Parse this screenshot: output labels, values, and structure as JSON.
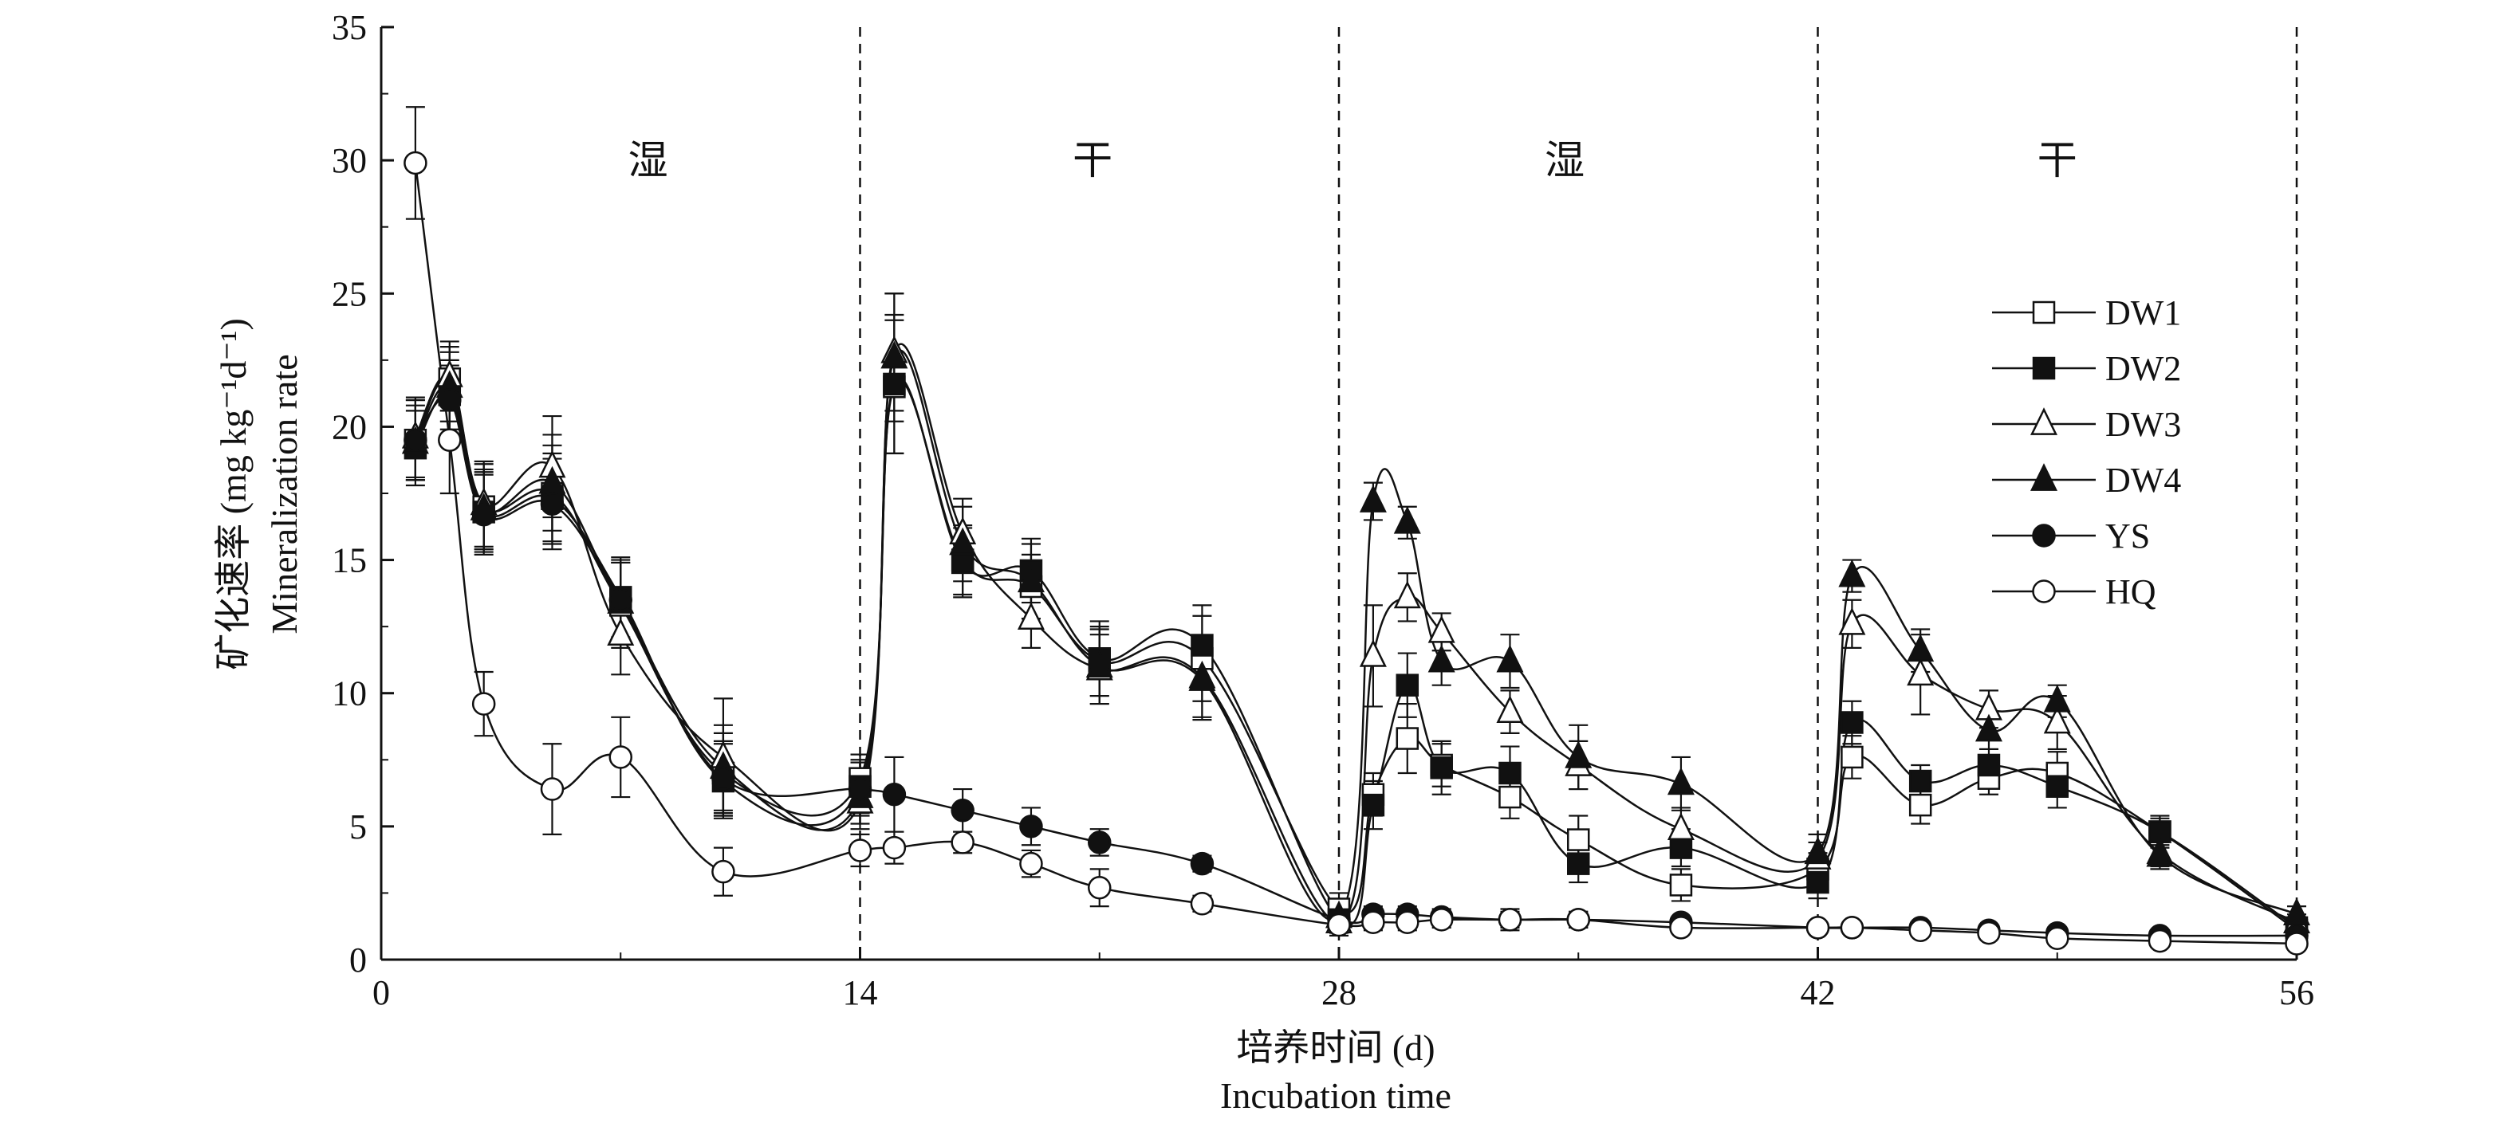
{
  "chart_data": {
    "type": "line",
    "xlabel_cn": "培养时间 (d)",
    "xlabel_en": "Incubation time",
    "ylabel_cn": "矿化速率 (mg kg⁻¹d⁻¹)",
    "ylabel_en": "Mineralization rate",
    "xlim": [
      0,
      56
    ],
    "ylim": [
      0,
      35
    ],
    "x_ticks": [
      0,
      14,
      28,
      42,
      56
    ],
    "y_ticks": [
      0,
      5,
      10,
      15,
      20,
      25,
      30,
      35
    ],
    "phase_boundaries": [
      14,
      28,
      42,
      56
    ],
    "phases": [
      {
        "label": "湿",
        "x": 7.8
      },
      {
        "label": "干",
        "x": 20.8
      },
      {
        "label": "湿",
        "x": 34.6
      },
      {
        "label": "干",
        "x": 49
      }
    ],
    "legend_position": "right",
    "series": [
      {
        "name": "DW1",
        "marker": "square-open",
        "points": [
          {
            "x": 1,
            "y": 19.5,
            "e": 1.5
          },
          {
            "x": 2,
            "y": 21.8,
            "e": 1.2
          },
          {
            "x": 3,
            "y": 17.0,
            "e": 1.6
          },
          {
            "x": 5,
            "y": 17.5,
            "e": 1.8
          },
          {
            "x": 7,
            "y": 13.3,
            "e": 1.6
          },
          {
            "x": 10,
            "y": 7.0,
            "e": 1.5
          },
          {
            "x": 14,
            "y": 6.8,
            "e": 0.9
          },
          {
            "x": 15,
            "y": 21.5,
            "e": 2.5
          },
          {
            "x": 17,
            "y": 15.0,
            "e": 1.3
          },
          {
            "x": 19,
            "y": 14.0,
            "e": 1.2
          },
          {
            "x": 21,
            "y": 11.2,
            "e": 1.3
          },
          {
            "x": 24,
            "y": 11.3,
            "e": 1.6
          },
          {
            "x": 28,
            "y": 1.9,
            "e": 0.6
          },
          {
            "x": 29,
            "y": 6.2,
            "e": 0.8
          },
          {
            "x": 30,
            "y": 8.3,
            "e": 1.3
          },
          {
            "x": 31,
            "y": 7.3,
            "e": 0.8
          },
          {
            "x": 33,
            "y": 6.1,
            "e": 0.8
          },
          {
            "x": 35,
            "y": 4.5,
            "e": 0.9
          },
          {
            "x": 38,
            "y": 2.8,
            "e": 0.6
          },
          {
            "x": 42,
            "y": 3.4,
            "e": 0.6
          },
          {
            "x": 43,
            "y": 7.6,
            "e": 0.8
          },
          {
            "x": 45,
            "y": 5.8,
            "e": 0.7
          },
          {
            "x": 47,
            "y": 6.8,
            "e": 0.6
          },
          {
            "x": 49,
            "y": 7.0,
            "e": 0.8
          },
          {
            "x": 52,
            "y": 4.8,
            "e": 0.6
          },
          {
            "x": 56,
            "y": 1.1,
            "e": 0.3
          }
        ]
      },
      {
        "name": "DW2",
        "marker": "square-filled",
        "points": [
          {
            "x": 1,
            "y": 19.2,
            "e": 1.4
          },
          {
            "x": 2,
            "y": 21.2,
            "e": 1.3
          },
          {
            "x": 3,
            "y": 16.8,
            "e": 1.5
          },
          {
            "x": 5,
            "y": 17.3,
            "e": 1.7
          },
          {
            "x": 7,
            "y": 13.6,
            "e": 1.5
          },
          {
            "x": 10,
            "y": 6.7,
            "e": 1.4
          },
          {
            "x": 14,
            "y": 6.5,
            "e": 1.0
          },
          {
            "x": 15,
            "y": 21.6,
            "e": 2.6
          },
          {
            "x": 17,
            "y": 14.9,
            "e": 1.3
          },
          {
            "x": 19,
            "y": 14.6,
            "e": 1.2
          },
          {
            "x": 21,
            "y": 11.3,
            "e": 1.4
          },
          {
            "x": 24,
            "y": 11.8,
            "e": 1.5
          },
          {
            "x": 28,
            "y": 1.5,
            "e": 0.5
          },
          {
            "x": 29,
            "y": 5.8,
            "e": 0.9
          },
          {
            "x": 30,
            "y": 10.3,
            "e": 1.2
          },
          {
            "x": 31,
            "y": 7.2,
            "e": 1.0
          },
          {
            "x": 33,
            "y": 7.0,
            "e": 1.0
          },
          {
            "x": 35,
            "y": 3.6,
            "e": 0.7
          },
          {
            "x": 38,
            "y": 4.2,
            "e": 0.7
          },
          {
            "x": 42,
            "y": 2.9,
            "e": 0.6
          },
          {
            "x": 43,
            "y": 8.9,
            "e": 0.8
          },
          {
            "x": 45,
            "y": 6.7,
            "e": 0.6
          },
          {
            "x": 47,
            "y": 7.3,
            "e": 0.6
          },
          {
            "x": 49,
            "y": 6.5,
            "e": 0.8
          },
          {
            "x": 52,
            "y": 4.8,
            "e": 0.5
          },
          {
            "x": 56,
            "y": 1.2,
            "e": 0.3
          }
        ]
      },
      {
        "name": "DW3",
        "marker": "triangle-open",
        "points": [
          {
            "x": 1,
            "y": 19.6,
            "e": 1.5
          },
          {
            "x": 2,
            "y": 21.9,
            "e": 1.3
          },
          {
            "x": 3,
            "y": 17.1,
            "e": 1.6
          },
          {
            "x": 5,
            "y": 18.5,
            "e": 1.9
          },
          {
            "x": 7,
            "y": 12.2,
            "e": 1.5
          },
          {
            "x": 10,
            "y": 7.6,
            "e": 2.2
          },
          {
            "x": 14,
            "y": 5.9,
            "e": 1.0
          },
          {
            "x": 15,
            "y": 22.8,
            "e": 2.2
          },
          {
            "x": 17,
            "y": 16.0,
            "e": 1.3
          },
          {
            "x": 19,
            "y": 12.8,
            "e": 1.1
          },
          {
            "x": 21,
            "y": 10.9,
            "e": 1.3
          },
          {
            "x": 24,
            "y": 10.6,
            "e": 1.5
          },
          {
            "x": 28,
            "y": 1.4,
            "e": 0.5
          },
          {
            "x": 29,
            "y": 11.4,
            "e": 1.9
          },
          {
            "x": 30,
            "y": 13.6,
            "e": 0.9
          },
          {
            "x": 31,
            "y": 12.3,
            "e": 0.7
          },
          {
            "x": 33,
            "y": 9.3,
            "e": 0.8
          },
          {
            "x": 35,
            "y": 7.3,
            "e": 0.9
          },
          {
            "x": 38,
            "y": 4.9,
            "e": 0.8
          },
          {
            "x": 42,
            "y": 3.8,
            "e": 0.6
          },
          {
            "x": 43,
            "y": 12.6,
            "e": 0.9
          },
          {
            "x": 45,
            "y": 10.7,
            "e": 1.5
          },
          {
            "x": 47,
            "y": 9.4,
            "e": 0.7
          },
          {
            "x": 49,
            "y": 8.9,
            "e": 1.0
          },
          {
            "x": 52,
            "y": 4.0,
            "e": 0.5
          },
          {
            "x": 56,
            "y": 1.4,
            "e": 0.3
          }
        ]
      },
      {
        "name": "DW4",
        "marker": "triangle-filled",
        "points": [
          {
            "x": 1,
            "y": 19.4,
            "e": 1.4
          },
          {
            "x": 2,
            "y": 21.5,
            "e": 1.3
          },
          {
            "x": 3,
            "y": 16.9,
            "e": 1.5
          },
          {
            "x": 5,
            "y": 17.9,
            "e": 1.8
          },
          {
            "x": 7,
            "y": 13.4,
            "e": 1.5
          },
          {
            "x": 10,
            "y": 7.2,
            "e": 1.6
          },
          {
            "x": 14,
            "y": 6.1,
            "e": 1.0
          },
          {
            "x": 15,
            "y": 22.6,
            "e": 2.4
          },
          {
            "x": 17,
            "y": 15.6,
            "e": 1.4
          },
          {
            "x": 19,
            "y": 14.2,
            "e": 1.4
          },
          {
            "x": 21,
            "y": 11.0,
            "e": 1.4
          },
          {
            "x": 24,
            "y": 10.5,
            "e": 1.5
          },
          {
            "x": 28,
            "y": 1.6,
            "e": 0.5
          },
          {
            "x": 29,
            "y": 17.2,
            "e": 0.7
          },
          {
            "x": 30,
            "y": 16.4,
            "e": 0.6
          },
          {
            "x": 31,
            "y": 11.2,
            "e": 0.9
          },
          {
            "x": 33,
            "y": 11.2,
            "e": 1.0
          },
          {
            "x": 35,
            "y": 7.6,
            "e": 1.2
          },
          {
            "x": 38,
            "y": 6.6,
            "e": 1.0
          },
          {
            "x": 42,
            "y": 4.0,
            "e": 0.7
          },
          {
            "x": 43,
            "y": 14.4,
            "e": 0.6
          },
          {
            "x": 45,
            "y": 11.6,
            "e": 0.8
          },
          {
            "x": 47,
            "y": 8.6,
            "e": 0.7
          },
          {
            "x": 49,
            "y": 9.7,
            "e": 0.6
          },
          {
            "x": 52,
            "y": 3.9,
            "e": 0.5
          },
          {
            "x": 56,
            "y": 1.7,
            "e": 0.3
          }
        ]
      },
      {
        "name": "YS",
        "marker": "circle-filled",
        "points": [
          {
            "x": 1,
            "y": 19.5,
            "e": 1.5
          },
          {
            "x": 2,
            "y": 21.0,
            "e": 1.3
          },
          {
            "x": 3,
            "y": 16.7,
            "e": 1.5
          },
          {
            "x": 5,
            "y": 17.1,
            "e": 1.7
          },
          {
            "x": 7,
            "y": 13.5,
            "e": 1.5
          },
          {
            "x": 10,
            "y": 6.8,
            "e": 1.4
          },
          {
            "x": 14,
            "y": 6.4,
            "e": 1.0
          },
          {
            "x": 15,
            "y": 6.2,
            "e": 1.4
          },
          {
            "x": 17,
            "y": 5.6,
            "e": 0.8
          },
          {
            "x": 19,
            "y": 5.0,
            "e": 0.7
          },
          {
            "x": 21,
            "y": 4.4,
            "e": 0.5
          },
          {
            "x": 24,
            "y": 3.6,
            "e": 0.3
          },
          {
            "x": 28,
            "y": 1.5,
            "e": 0.4
          },
          {
            "x": 29,
            "y": 1.7,
            "e": 0.3
          },
          {
            "x": 30,
            "y": 1.7,
            "e": 0.3
          },
          {
            "x": 31,
            "y": 1.6,
            "e": 0.3
          },
          {
            "x": 33,
            "y": 1.5,
            "e": 0.3
          },
          {
            "x": 35,
            "y": 1.5,
            "e": 0.3
          },
          {
            "x": 38,
            "y": 1.4,
            "e": 0.2
          },
          {
            "x": 42,
            "y": 1.2,
            "e": 0.2
          },
          {
            "x": 43,
            "y": 1.2,
            "e": 0.2
          },
          {
            "x": 45,
            "y": 1.2,
            "e": 0.2
          },
          {
            "x": 47,
            "y": 1.1,
            "e": 0.2
          },
          {
            "x": 49,
            "y": 1.0,
            "e": 0.2
          },
          {
            "x": 52,
            "y": 0.9,
            "e": 0.2
          },
          {
            "x": 56,
            "y": 0.9,
            "e": 0.2
          }
        ]
      },
      {
        "name": "HQ",
        "marker": "circle-open",
        "points": [
          {
            "x": 1,
            "y": 29.9,
            "e": 2.1
          },
          {
            "x": 2,
            "y": 19.5,
            "e": 2.0
          },
          {
            "x": 3,
            "y": 9.6,
            "e": 1.2
          },
          {
            "x": 5,
            "y": 6.4,
            "e": 1.7
          },
          {
            "x": 7,
            "y": 7.6,
            "e": 1.5
          },
          {
            "x": 10,
            "y": 3.3,
            "e": 0.9
          },
          {
            "x": 14,
            "y": 4.1,
            "e": 0.6
          },
          {
            "x": 15,
            "y": 4.2,
            "e": 0.6
          },
          {
            "x": 17,
            "y": 4.4,
            "e": 0.4
          },
          {
            "x": 19,
            "y": 3.6,
            "e": 0.5
          },
          {
            "x": 21,
            "y": 2.7,
            "e": 0.7
          },
          {
            "x": 24,
            "y": 2.1,
            "e": 0.3
          },
          {
            "x": 28,
            "y": 1.3,
            "e": 0.4
          },
          {
            "x": 29,
            "y": 1.4,
            "e": 0.3
          },
          {
            "x": 30,
            "y": 1.4,
            "e": 0.3
          },
          {
            "x": 31,
            "y": 1.5,
            "e": 0.3
          },
          {
            "x": 33,
            "y": 1.5,
            "e": 0.4
          },
          {
            "x": 35,
            "y": 1.5,
            "e": 0.3
          },
          {
            "x": 38,
            "y": 1.2,
            "e": 0.2
          },
          {
            "x": 42,
            "y": 1.2,
            "e": 0.2
          },
          {
            "x": 43,
            "y": 1.2,
            "e": 0.2
          },
          {
            "x": 45,
            "y": 1.1,
            "e": 0.2
          },
          {
            "x": 47,
            "y": 1.0,
            "e": 0.2
          },
          {
            "x": 49,
            "y": 0.8,
            "e": 0.2
          },
          {
            "x": 52,
            "y": 0.7,
            "e": 0.2
          },
          {
            "x": 56,
            "y": 0.6,
            "e": 0.2
          }
        ]
      }
    ]
  }
}
